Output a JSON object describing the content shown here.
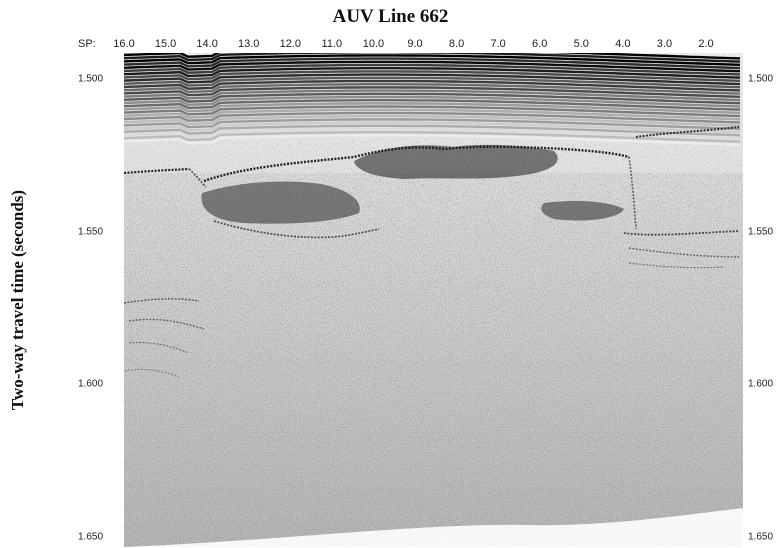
{
  "figure": {
    "title": "AUV Line 662",
    "ylabel": "Two-way travel time (seconds)",
    "sp_label": "SP:",
    "x_ticks": [
      "16.0",
      "15.0",
      "14.0",
      "13.0",
      "12.0",
      "11.0",
      "10.0",
      "9.0",
      "8.0",
      "7.0",
      "6.0",
      "5.0",
      "4.0",
      "3.0",
      "2.0"
    ],
    "y_ticks": [
      "1.500",
      "1.550",
      "1.600",
      "1.650"
    ]
  },
  "colors": {
    "background": "#ffffff",
    "reflector_dark": "#111111",
    "water_band_dark": "#2a2a2a",
    "noise_light": "#e6e6e6"
  }
}
